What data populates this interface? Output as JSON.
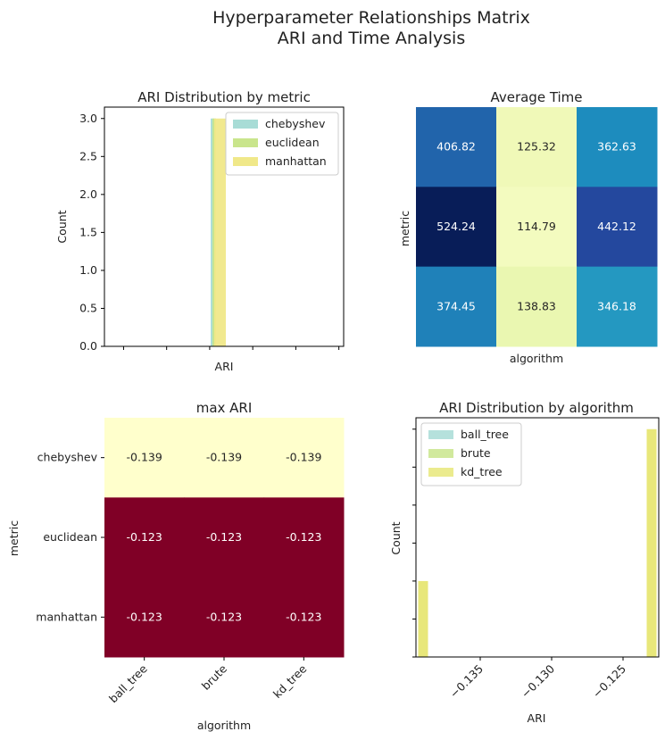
{
  "figure": {
    "title_line1": "Hyperparameter Relationships Matrix",
    "title_line2": "ARI and Time Analysis"
  },
  "colors": {
    "chebyshev": "#a8dcd6",
    "euclidean": "#c9e58c",
    "manhattan": "#f0e889",
    "ball_tree": "#a8dcd6",
    "brute": "#c9e58c",
    "kd_tree": "#e8e77a",
    "maxari_low": "#ffffcc",
    "maxari_high": "#800026"
  },
  "chart_data": [
    {
      "type": "bar",
      "title": "ARI Distribution by metric",
      "xlabel": "ARI",
      "ylabel": "Count",
      "ylim": [
        0,
        3.15
      ],
      "yticks": [
        "0.0",
        "0.5",
        "1.0",
        "1.5",
        "2.0",
        "2.5",
        "3.0"
      ],
      "legend_position": "top-right",
      "series": [
        {
          "name": "chebyshev",
          "values": [
            3
          ]
        },
        {
          "name": "euclidean",
          "values": [
            3
          ]
        },
        {
          "name": "manhattan",
          "values": [
            3
          ]
        }
      ]
    },
    {
      "type": "heatmap",
      "title": "Average Time",
      "xlabel": "algorithm",
      "ylabel": "metric",
      "colormap": "YlGnBu",
      "values": [
        [
          406.82,
          125.32,
          362.63
        ],
        [
          524.24,
          114.79,
          442.12
        ],
        [
          374.45,
          138.83,
          346.18
        ]
      ],
      "labels": [
        [
          "406.82",
          "125.32",
          "362.63"
        ],
        [
          "524.24",
          "114.79",
          "442.12"
        ],
        [
          "374.45",
          "138.83",
          "346.18"
        ]
      ]
    },
    {
      "type": "heatmap",
      "title": "max ARI",
      "xlabel": "algorithm",
      "ylabel": "metric",
      "colormap": "YlOrRd",
      "row_labels": [
        "chebyshev",
        "euclidean",
        "manhattan"
      ],
      "col_labels": [
        "ball_tree",
        "brute",
        "kd_tree"
      ],
      "values": [
        [
          -0.139,
          -0.139,
          -0.139
        ],
        [
          -0.123,
          -0.123,
          -0.123
        ],
        [
          -0.123,
          -0.123,
          -0.123
        ]
      ],
      "labels": [
        [
          "-0.139",
          "-0.139",
          "-0.139"
        ],
        [
          "-0.123",
          "-0.123",
          "-0.123"
        ],
        [
          "-0.123",
          "-0.123",
          "-0.123"
        ]
      ]
    },
    {
      "type": "bar",
      "title": "ARI Distribution by algorithm",
      "xlabel": "ARI",
      "ylabel": "Count",
      "xlim": [
        -0.1395,
        -0.1225
      ],
      "xticks": [
        -0.135,
        -0.13,
        -0.125
      ],
      "xtick_labels": [
        "−0.135",
        "−0.130",
        "−0.125"
      ],
      "ylim": [
        0,
        6.3
      ],
      "legend_position": "top-left",
      "series": [
        {
          "name": "ball_tree",
          "x": [
            -0.139,
            -0.123
          ],
          "values": [
            1,
            3
          ]
        },
        {
          "name": "brute",
          "x": [
            -0.139,
            -0.123
          ],
          "values": [
            1,
            3
          ]
        },
        {
          "name": "kd_tree",
          "x": [
            -0.139,
            -0.123
          ],
          "values": [
            2,
            6
          ]
        }
      ]
    }
  ]
}
